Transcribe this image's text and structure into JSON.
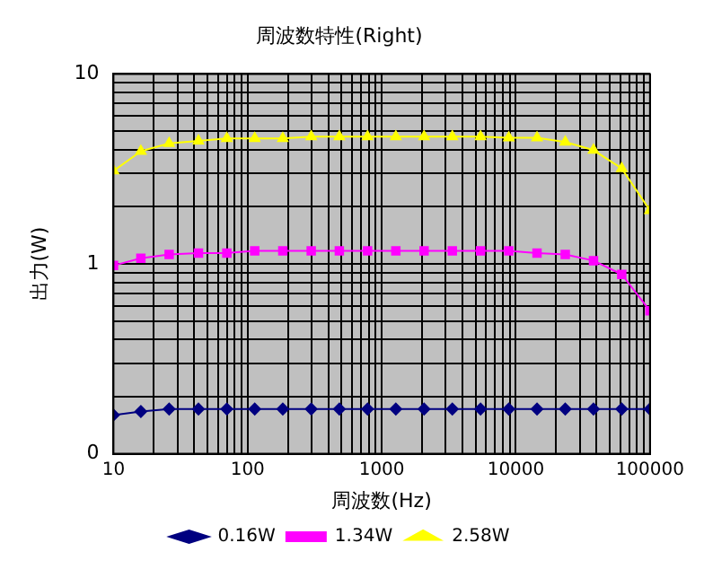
{
  "chart_data": {
    "type": "line",
    "title": "周波数特性(Right)",
    "xlabel": "周波数(Hz)",
    "ylabel": "出力(W)",
    "x": [
      10,
      16,
      26,
      43,
      70,
      113,
      183,
      298,
      483,
      784,
      1274,
      2069,
      3360,
      5456,
      8859,
      14385,
      23357,
      37927,
      61585,
      100000
    ],
    "series": [
      {
        "name": "0.16W",
        "color": "#000080",
        "marker": "diamond",
        "values": [
          0.16,
          0.167,
          0.172,
          0.172,
          0.172,
          0.172,
          0.172,
          0.172,
          0.172,
          0.172,
          0.172,
          0.172,
          0.172,
          0.172,
          0.172,
          0.172,
          0.172,
          0.172,
          0.172,
          0.172
        ]
      },
      {
        "name": "1.34W",
        "color": "#ff00ff",
        "marker": "square",
        "values": [
          0.98,
          1.07,
          1.12,
          1.14,
          1.14,
          1.17,
          1.17,
          1.17,
          1.17,
          1.17,
          1.17,
          1.17,
          1.17,
          1.17,
          1.17,
          1.14,
          1.12,
          1.04,
          0.88,
          0.566
        ]
      },
      {
        "name": "2.58W",
        "color": "#ffff00",
        "marker": "triangle",
        "values": [
          3.09,
          3.92,
          4.31,
          4.44,
          4.58,
          4.58,
          4.58,
          4.68,
          4.68,
          4.68,
          4.68,
          4.68,
          4.68,
          4.68,
          4.61,
          4.61,
          4.38,
          3.97,
          3.18,
          1.91
        ]
      }
    ],
    "log": "xy",
    "xlim": [
      10,
      100000
    ],
    "ylim": [
      0.1,
      10
    ],
    "xticks": [
      10,
      {
        "value": 20,
        "label": null
      },
      {
        "value": 30,
        "label": null
      },
      {
        "value": 40,
        "label": null
      },
      {
        "value": 50,
        "label": null
      },
      {
        "value": 60,
        "label": null
      },
      {
        "value": 70,
        "label": null
      },
      {
        "value": 80,
        "label": null
      },
      {
        "value": 90,
        "label": null
      },
      100,
      {
        "value": 200,
        "label": null
      },
      {
        "value": 300,
        "label": null
      },
      {
        "value": 400,
        "label": null
      },
      {
        "value": 500,
        "label": null
      },
      {
        "value": 600,
        "label": null
      },
      {
        "value": 700,
        "label": null
      },
      {
        "value": 800,
        "label": null
      },
      {
        "value": 900,
        "label": null
      },
      1000,
      {
        "value": 2000,
        "label": null
      },
      {
        "value": 3000,
        "label": null
      },
      {
        "value": 4000,
        "label": null
      },
      {
        "value": 5000,
        "label": null
      },
      {
        "value": 6000,
        "label": null
      },
      {
        "value": 7000,
        "label": null
      },
      {
        "value": 8000,
        "label": null
      },
      {
        "value": 9000,
        "label": null
      },
      10000,
      {
        "value": 20000,
        "label": null
      },
      {
        "value": 30000,
        "label": null
      },
      {
        "value": 40000,
        "label": null
      },
      {
        "value": 50000,
        "label": null
      },
      {
        "value": 60000,
        "label": null
      },
      {
        "value": 70000,
        "label": null
      },
      {
        "value": 80000,
        "label": null
      },
      {
        "value": 90000,
        "label": null
      },
      100000
    ],
    "yticks": [
      {
        "value": 0.1,
        "label": "0"
      },
      {
        "value": 0.2,
        "label": null
      },
      {
        "value": 0.3,
        "label": null
      },
      {
        "value": 0.4,
        "label": null
      },
      {
        "value": 0.5,
        "label": null
      },
      {
        "value": 0.6,
        "label": null
      },
      {
        "value": 0.7,
        "label": null
      },
      {
        "value": 0.8,
        "label": null
      },
      {
        "value": 0.9,
        "label": null
      },
      1,
      {
        "value": 2,
        "label": null
      },
      {
        "value": 3,
        "label": null
      },
      {
        "value": 4,
        "label": null
      },
      {
        "value": 5,
        "label": null
      },
      {
        "value": 6,
        "label": null
      },
      {
        "value": 7,
        "label": null
      },
      {
        "value": 8,
        "label": null
      },
      {
        "value": 9,
        "label": null
      },
      10
    ],
    "grid": true,
    "legend": "bottom",
    "line_style": "solid"
  }
}
